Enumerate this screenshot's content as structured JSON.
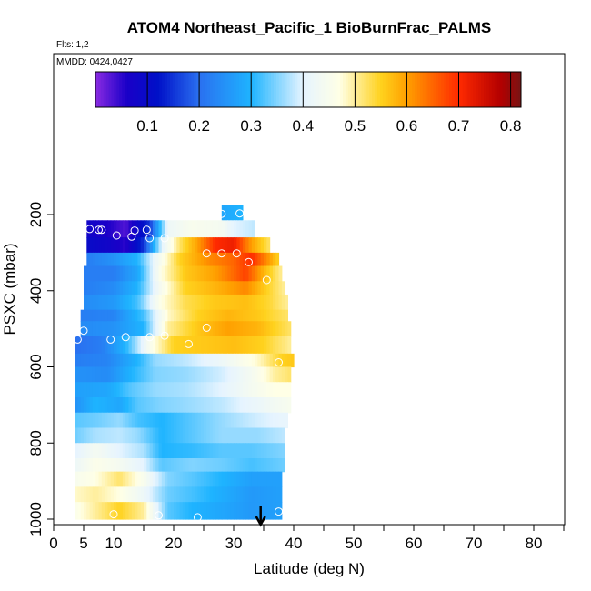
{
  "chart_data": {
    "type": "heatmap",
    "title": "ATOM4 Northeast_Pacific_1 BioBurnFrac_PALMS",
    "flights_label": "Flts: 1,2",
    "mmdd_label": "MMDD: 0424,0427",
    "xlabel": "Latitude (deg N)",
    "ylabel": "PSXC (mbar)",
    "xlim": [
      0,
      85
    ],
    "ylim": [
      1000,
      100
    ],
    "y_inverted": true,
    "x_major_ticks": [
      0,
      5,
      10,
      20,
      30,
      40,
      50,
      60,
      70,
      80
    ],
    "x_major_tick_labels": [
      "0",
      "5",
      "10",
      "20",
      "30",
      "40",
      "50",
      "60",
      "70",
      "80"
    ],
    "x_minor_ticks": [
      15,
      25,
      35,
      45,
      55,
      65,
      75,
      85
    ],
    "y_ticks": [
      200,
      400,
      600,
      800,
      1000
    ],
    "y_tick_labels": [
      "200",
      "400",
      "600",
      "800",
      "1000"
    ],
    "colorbar": {
      "range": [
        0,
        0.82
      ],
      "ticks": [
        0.1,
        0.2,
        0.3,
        0.4,
        0.5,
        0.6,
        0.7,
        0.8
      ],
      "tick_labels": [
        "0.1",
        "0.2",
        "0.3",
        "0.4",
        "0.5",
        "0.6",
        "0.7",
        "0.8"
      ],
      "dividers": [
        0.1,
        0.2,
        0.3,
        0.4,
        0.5,
        0.6,
        0.7,
        0.8
      ],
      "stops": [
        {
          "v": 0.0,
          "color": "#8a2be2"
        },
        {
          "v": 0.06,
          "color": "#1a00c8"
        },
        {
          "v": 0.12,
          "color": "#0010c8"
        },
        {
          "v": 0.2,
          "color": "#2a70f0"
        },
        {
          "v": 0.3,
          "color": "#1eb4ff"
        },
        {
          "v": 0.4,
          "color": "#e6f4ff"
        },
        {
          "v": 0.47,
          "color": "#ffffe6"
        },
        {
          "v": 0.55,
          "color": "#ffd21e"
        },
        {
          "v": 0.6,
          "color": "#ffa000"
        },
        {
          "v": 0.7,
          "color": "#ff2a00"
        },
        {
          "v": 0.78,
          "color": "#b40000"
        },
        {
          "v": 0.82,
          "color": "#781414"
        }
      ]
    },
    "curtain_bands": [
      {
        "p_top": 175,
        "p_bot": 215,
        "lat_min": 28.0,
        "lat_max": 31.5,
        "profile": [
          [
            28.0,
            0.28
          ],
          [
            31.5,
            0.3
          ]
        ]
      },
      {
        "p_top": 215,
        "p_bot": 260,
        "lat_min": 5.5,
        "lat_max": 33.5,
        "profile": [
          [
            5.5,
            0.08
          ],
          [
            9,
            0.06
          ],
          [
            12,
            0.03
          ],
          [
            14,
            0.09
          ],
          [
            16,
            0.15
          ],
          [
            19,
            0.42
          ],
          [
            23,
            0.45
          ],
          [
            28,
            0.44
          ],
          [
            30,
            0.4
          ],
          [
            33.5,
            0.38
          ]
        ]
      },
      {
        "p_top": 260,
        "p_bot": 300,
        "lat_min": 5.5,
        "lat_max": 36.0,
        "profile": [
          [
            5.5,
            0.1
          ],
          [
            9,
            0.08
          ],
          [
            12,
            0.05
          ],
          [
            15,
            0.15
          ],
          [
            18,
            0.4
          ],
          [
            21,
            0.52
          ],
          [
            24,
            0.6
          ],
          [
            27,
            0.7
          ],
          [
            30,
            0.72
          ],
          [
            33,
            0.6
          ],
          [
            36,
            0.52
          ]
        ]
      },
      {
        "p_top": 300,
        "p_bot": 335,
        "lat_min": 5.5,
        "lat_max": 37.5,
        "profile": [
          [
            5.5,
            0.22
          ],
          [
            10,
            0.25
          ],
          [
            14,
            0.3
          ],
          [
            17,
            0.42
          ],
          [
            21,
            0.55
          ],
          [
            26,
            0.62
          ],
          [
            30,
            0.65
          ],
          [
            33,
            0.7
          ],
          [
            37.5,
            0.55
          ]
        ]
      },
      {
        "p_top": 335,
        "p_bot": 375,
        "lat_min": 5.0,
        "lat_max": 38.0,
        "profile": [
          [
            5,
            0.22
          ],
          [
            10,
            0.22
          ],
          [
            14,
            0.28
          ],
          [
            18,
            0.47
          ],
          [
            22,
            0.56
          ],
          [
            27,
            0.6
          ],
          [
            32,
            0.68
          ],
          [
            35,
            0.58
          ],
          [
            38,
            0.5
          ]
        ]
      },
      {
        "p_top": 375,
        "p_bot": 410,
        "lat_min": 5.0,
        "lat_max": 38.5,
        "profile": [
          [
            5,
            0.22
          ],
          [
            10,
            0.24
          ],
          [
            14,
            0.3
          ],
          [
            18,
            0.45
          ],
          [
            22,
            0.55
          ],
          [
            27,
            0.58
          ],
          [
            32,
            0.62
          ],
          [
            35,
            0.56
          ],
          [
            38.5,
            0.5
          ]
        ]
      },
      {
        "p_top": 410,
        "p_bot": 450,
        "lat_min": 5.0,
        "lat_max": 39.0,
        "profile": [
          [
            5,
            0.24
          ],
          [
            10,
            0.26
          ],
          [
            14,
            0.32
          ],
          [
            18,
            0.47
          ],
          [
            22,
            0.53
          ],
          [
            27,
            0.56
          ],
          [
            32,
            0.57
          ],
          [
            36,
            0.54
          ],
          [
            39,
            0.5
          ]
        ]
      },
      {
        "p_top": 450,
        "p_bot": 480,
        "lat_min": 4.5,
        "lat_max": 39.0,
        "profile": [
          [
            4.5,
            0.22
          ],
          [
            10,
            0.23
          ],
          [
            15,
            0.32
          ],
          [
            19,
            0.48
          ],
          [
            24,
            0.55
          ],
          [
            29,
            0.58
          ],
          [
            34,
            0.56
          ],
          [
            39,
            0.52
          ]
        ]
      },
      {
        "p_top": 480,
        "p_bot": 520,
        "lat_min": 4.5,
        "lat_max": 39.5,
        "profile": [
          [
            4.5,
            0.24
          ],
          [
            10,
            0.25
          ],
          [
            15,
            0.3
          ],
          [
            19,
            0.5
          ],
          [
            24,
            0.56
          ],
          [
            29,
            0.6
          ],
          [
            34,
            0.58
          ],
          [
            39.5,
            0.52
          ]
        ]
      },
      {
        "p_top": 520,
        "p_bot": 565,
        "lat_min": 3.5,
        "lat_max": 39.5,
        "profile": [
          [
            3.5,
            0.2
          ],
          [
            8,
            0.22
          ],
          [
            12,
            0.3
          ],
          [
            16,
            0.45
          ],
          [
            20,
            0.55
          ],
          [
            25,
            0.56
          ],
          [
            30,
            0.57
          ],
          [
            35,
            0.55
          ],
          [
            39.5,
            0.5
          ]
        ]
      },
      {
        "p_top": 565,
        "p_bot": 600,
        "lat_min": 3.5,
        "lat_max": 40.0,
        "profile": [
          [
            3.5,
            0.22
          ],
          [
            9,
            0.23
          ],
          [
            14,
            0.3
          ],
          [
            17,
            0.36
          ],
          [
            22,
            0.38
          ],
          [
            28,
            0.42
          ],
          [
            34,
            0.48
          ],
          [
            38,
            0.55
          ],
          [
            40,
            0.56
          ]
        ]
      },
      {
        "p_top": 600,
        "p_bot": 640,
        "lat_min": 3.5,
        "lat_max": 39.5,
        "profile": [
          [
            3.5,
            0.25
          ],
          [
            9,
            0.24
          ],
          [
            13,
            0.3
          ],
          [
            17,
            0.35
          ],
          [
            22,
            0.36
          ],
          [
            28,
            0.39
          ],
          [
            33,
            0.44
          ],
          [
            37,
            0.5
          ],
          [
            39.5,
            0.52
          ]
        ]
      },
      {
        "p_top": 640,
        "p_bot": 680,
        "lat_min": 3.5,
        "lat_max": 39.5,
        "profile": [
          [
            3.5,
            0.27
          ],
          [
            9,
            0.28
          ],
          [
            13,
            0.33
          ],
          [
            17,
            0.36
          ],
          [
            22,
            0.37
          ],
          [
            28,
            0.4
          ],
          [
            33,
            0.44
          ],
          [
            37,
            0.47
          ],
          [
            39.5,
            0.47
          ]
        ]
      },
      {
        "p_top": 680,
        "p_bot": 720,
        "lat_min": 3.5,
        "lat_max": 39.5,
        "profile": [
          [
            3.5,
            0.25
          ],
          [
            7,
            0.3
          ],
          [
            11,
            0.28
          ],
          [
            14,
            0.33
          ],
          [
            18,
            0.35
          ],
          [
            22,
            0.36
          ],
          [
            28,
            0.38
          ],
          [
            33,
            0.41
          ],
          [
            39.5,
            0.45
          ]
        ]
      },
      {
        "p_top": 720,
        "p_bot": 760,
        "lat_min": 3.5,
        "lat_max": 39.0,
        "profile": [
          [
            3.5,
            0.33
          ],
          [
            7,
            0.34
          ],
          [
            11,
            0.36
          ],
          [
            14,
            0.32
          ],
          [
            18,
            0.3
          ],
          [
            23,
            0.33
          ],
          [
            28,
            0.36
          ],
          [
            34,
            0.39
          ],
          [
            39,
            0.41
          ]
        ]
      },
      {
        "p_top": 760,
        "p_bot": 800,
        "lat_min": 3.5,
        "lat_max": 38.5,
        "profile": [
          [
            3.5,
            0.34
          ],
          [
            7,
            0.37
          ],
          [
            11,
            0.38
          ],
          [
            14,
            0.36
          ],
          [
            18,
            0.3
          ],
          [
            23,
            0.33
          ],
          [
            28,
            0.36
          ],
          [
            34,
            0.36
          ],
          [
            38.5,
            0.38
          ]
        ]
      },
      {
        "p_top": 800,
        "p_bot": 840,
        "lat_min": 3.5,
        "lat_max": 38.5,
        "profile": [
          [
            3.5,
            0.4
          ],
          [
            7,
            0.44
          ],
          [
            11,
            0.4
          ],
          [
            15,
            0.37
          ],
          [
            18,
            0.3
          ],
          [
            23,
            0.31
          ],
          [
            28,
            0.33
          ],
          [
            33,
            0.33
          ],
          [
            38.5,
            0.35
          ]
        ]
      },
      {
        "p_top": 840,
        "p_bot": 875,
        "lat_min": 3.5,
        "lat_max": 38.5,
        "profile": [
          [
            3.5,
            0.42
          ],
          [
            7,
            0.46
          ],
          [
            11,
            0.44
          ],
          [
            15,
            0.4
          ],
          [
            18,
            0.33
          ],
          [
            23,
            0.35
          ],
          [
            28,
            0.34
          ],
          [
            33,
            0.32
          ],
          [
            38.5,
            0.34
          ]
        ]
      },
      {
        "p_top": 875,
        "p_bot": 915,
        "lat_min": 3.5,
        "lat_max": 38.0,
        "profile": [
          [
            3.5,
            0.45
          ],
          [
            7,
            0.47
          ],
          [
            11,
            0.52
          ],
          [
            15,
            0.45
          ],
          [
            19,
            0.35
          ],
          [
            23,
            0.33
          ],
          [
            28,
            0.3
          ],
          [
            33,
            0.27
          ],
          [
            38,
            0.27
          ]
        ]
      },
      {
        "p_top": 915,
        "p_bot": 955,
        "lat_min": 3.5,
        "lat_max": 38.0,
        "profile": [
          [
            3.5,
            0.48
          ],
          [
            7,
            0.5
          ],
          [
            11,
            0.47
          ],
          [
            15,
            0.42
          ],
          [
            19,
            0.34
          ],
          [
            23,
            0.32
          ],
          [
            28,
            0.29
          ],
          [
            33,
            0.26
          ],
          [
            38,
            0.27
          ]
        ]
      },
      {
        "p_top": 955,
        "p_bot": 1000,
        "lat_min": 3.5,
        "lat_max": 38.0,
        "profile": [
          [
            3.5,
            0.46
          ],
          [
            7,
            0.5
          ],
          [
            11,
            0.55
          ],
          [
            15,
            0.5
          ],
          [
            19,
            0.33
          ],
          [
            23,
            0.3
          ],
          [
            28,
            0.28
          ],
          [
            33,
            0.26
          ],
          [
            38,
            0.27
          ]
        ]
      }
    ],
    "sample_points": [
      {
        "lat": 28.0,
        "p": 198
      },
      {
        "lat": 31.0,
        "p": 197
      },
      {
        "lat": 6.0,
        "p": 238
      },
      {
        "lat": 7.5,
        "p": 240
      },
      {
        "lat": 8.0,
        "p": 240
      },
      {
        "lat": 13.5,
        "p": 242
      },
      {
        "lat": 15.5,
        "p": 240
      },
      {
        "lat": 10.5,
        "p": 255
      },
      {
        "lat": 13.0,
        "p": 258
      },
      {
        "lat": 16.0,
        "p": 262
      },
      {
        "lat": 18.5,
        "p": 262
      },
      {
        "lat": 25.5,
        "p": 302
      },
      {
        "lat": 28.0,
        "p": 302
      },
      {
        "lat": 30.5,
        "p": 302
      },
      {
        "lat": 32.5,
        "p": 325
      },
      {
        "lat": 35.5,
        "p": 372
      },
      {
        "lat": 5.0,
        "p": 505
      },
      {
        "lat": 25.5,
        "p": 497
      },
      {
        "lat": 4.0,
        "p": 528
      },
      {
        "lat": 9.5,
        "p": 528
      },
      {
        "lat": 12.0,
        "p": 522
      },
      {
        "lat": 16.0,
        "p": 522
      },
      {
        "lat": 18.5,
        "p": 518
      },
      {
        "lat": 22.5,
        "p": 540
      },
      {
        "lat": 37.5,
        "p": 588
      },
      {
        "lat": 10.0,
        "p": 987
      },
      {
        "lat": 17.5,
        "p": 990
      },
      {
        "lat": 24.0,
        "p": 995
      },
      {
        "lat": 37.5,
        "p": 980
      }
    ],
    "arrow_lat": 34.5
  }
}
